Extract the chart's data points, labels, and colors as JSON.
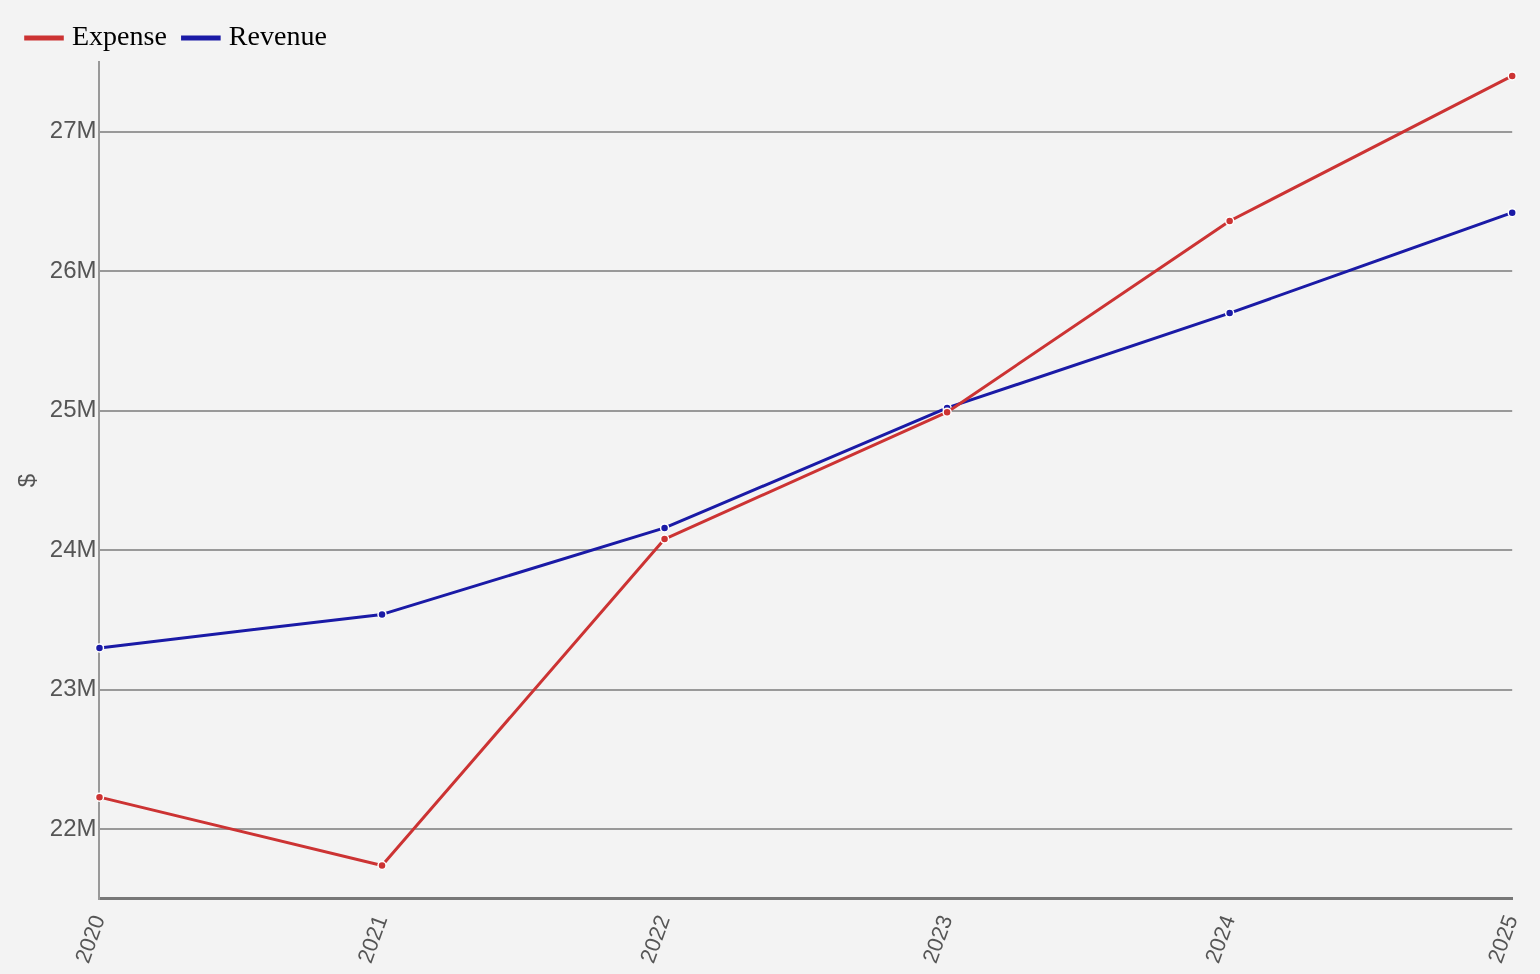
{
  "chart_data": {
    "type": "line",
    "ylabel": "$",
    "categories": [
      "2020",
      "2021",
      "2022",
      "2023",
      "2024",
      "2025"
    ],
    "series": [
      {
        "name": "Expense",
        "color": "#cc3333",
        "values": [
          22.23,
          21.74,
          24.08,
          24.99,
          26.36,
          27.4
        ]
      },
      {
        "name": "Revenue",
        "color": "#1a1aa6",
        "values": [
          23.3,
          23.54,
          24.16,
          25.02,
          25.7,
          26.42
        ]
      }
    ],
    "ylim": [
      21.5,
      27.5
    ],
    "yticks": [
      {
        "value": 22,
        "label": "22M"
      },
      {
        "value": 23,
        "label": "23M"
      },
      {
        "value": 24,
        "label": "24M"
      },
      {
        "value": 25,
        "label": "25M"
      },
      {
        "value": 26,
        "label": "26M"
      },
      {
        "value": 27,
        "label": "27M"
      }
    ],
    "grid": "y",
    "legend": "top left",
    "marker": "circle",
    "line_style": "solid"
  }
}
